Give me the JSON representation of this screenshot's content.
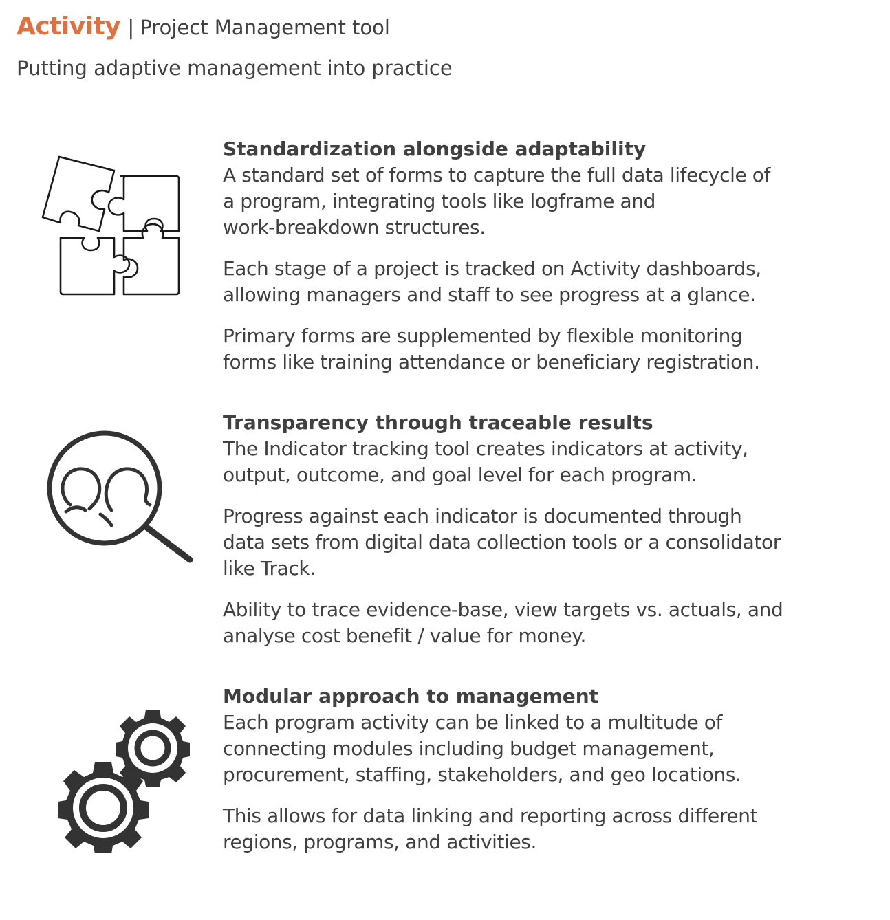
{
  "header": {
    "brand": "Activity",
    "separator": "|",
    "product": "Project Management tool",
    "tagline": "Putting adaptive management into practice",
    "accent_color": "#E0703E"
  },
  "sections": [
    {
      "icon": "puzzle-icon",
      "title": "Standardization alongside adaptability",
      "paragraphs": [
        [
          "A standard set of forms to capture the full data lifecycle of",
          "a program, integrating tools like logframe and",
          "work-breakdown structures."
        ],
        [
          "Each stage of a project is tracked on Activity dashboards,",
          "allowing managers and staff to see progress at a glance."
        ],
        [
          "Primary forms are supplemented by flexible monitoring",
          "forms like training attendance or beneficiary registration."
        ]
      ]
    },
    {
      "icon": "magnifier-people-icon",
      "title": "Transparency through traceable results",
      "paragraphs": [
        [
          "The Indicator tracking tool creates indicators at activity,",
          "output, outcome, and goal level for each program."
        ],
        [
          "Progress against each indicator is documented through",
          "data sets from digital data collection tools or a consolidator",
          "like Track."
        ],
        [
          "Ability to trace evidence-base, view targets vs. actuals, and",
          "analyse cost benefit / value for money."
        ]
      ]
    },
    {
      "icon": "gears-icon",
      "title": "Modular approach to management",
      "paragraphs": [
        [
          "Each program activity can be linked to a multitude of",
          "connecting modules including budget management,",
          "procurement, staffing, stakeholders, and geo locations."
        ],
        [
          "This allows for data linking and reporting across different",
          "regions, programs, and activities."
        ]
      ]
    }
  ]
}
